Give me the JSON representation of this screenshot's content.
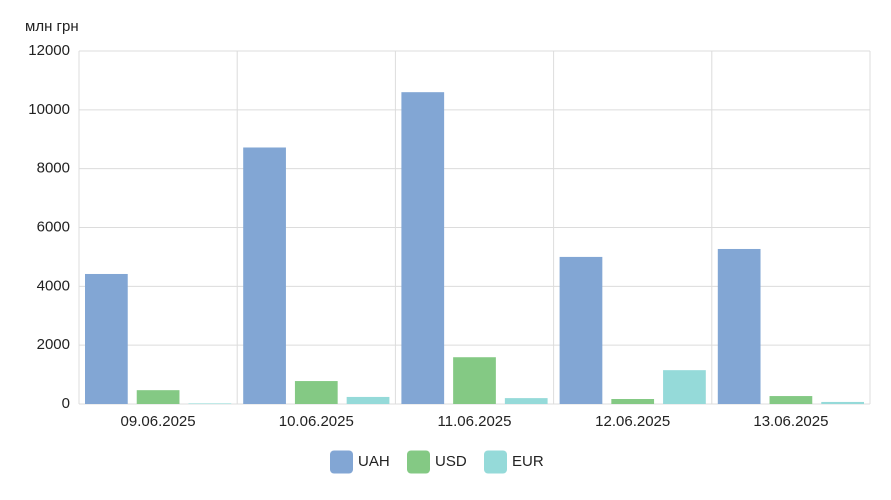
{
  "chart_data": {
    "type": "bar",
    "y_label": "млн грн",
    "categories": [
      "09.06.2025",
      "10.06.2025",
      "11.06.2025",
      "12.06.2025",
      "13.06.2025"
    ],
    "series": [
      {
        "name": "UAH",
        "color": "#82a6d4",
        "values": [
          4420,
          8720,
          10600,
          5000,
          5270
        ]
      },
      {
        "name": "USD",
        "color": "#84c984",
        "values": [
          470,
          780,
          1590,
          170,
          270
        ]
      },
      {
        "name": "EUR",
        "color": "#95dad9",
        "values": [
          20,
          240,
          200,
          1150,
          70
        ]
      }
    ],
    "ylim": [
      0,
      12000
    ],
    "yticks": [
      0,
      2000,
      4000,
      6000,
      8000,
      10000,
      12000
    ],
    "grid": true,
    "legend": "bottom"
  }
}
